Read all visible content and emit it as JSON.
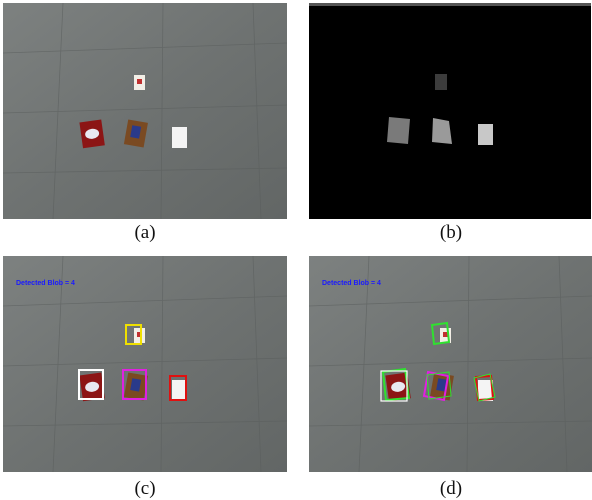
{
  "panels": [
    {
      "caption": "(a)"
    },
    {
      "caption": "(b)"
    },
    {
      "caption": "(c)",
      "overlay": "Detected Blob = 4"
    },
    {
      "caption": "(d)",
      "overlay": "Detected Blob = 4"
    }
  ]
}
